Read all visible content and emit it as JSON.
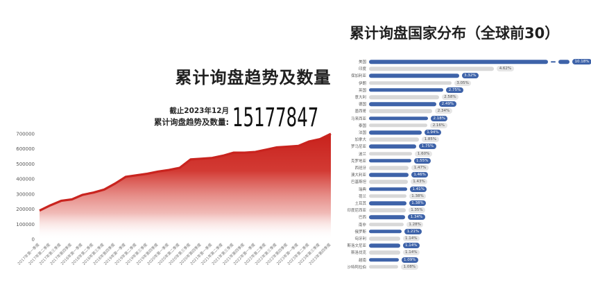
{
  "page": {
    "background": "#ffffff"
  },
  "left_panel": {
    "title": "累计询盘趋势及数量",
    "asof": "截止2023年12月",
    "total_label": "累计询盘趋势及数量:",
    "total_value": "15177847"
  },
  "right_panel": {
    "title": "累计询盘国家分布（全球前30）"
  },
  "colors": {
    "area_gradient_top": "#c8211c",
    "area_line": "#c9241f",
    "bar_blue": "#3e63a9",
    "bar_gray": "#d8d8d8",
    "pill_blue_bg": "#3e63a9",
    "pill_blue_text": "#ffffff",
    "pill_gray_bg": "#e6e6e6",
    "pill_gray_text": "#555555",
    "axis_text": "#555555",
    "x_tick_text": "#7a7a7a"
  },
  "chart_data": [
    {
      "type": "area",
      "title": "累计询盘趋势及数量",
      "xlabel": "",
      "ylabel": "",
      "ylim": [
        0,
        700000
      ],
      "yticks": [
        0,
        100000,
        200000,
        300000,
        400000,
        500000,
        600000,
        700000
      ],
      "grid": false,
      "legend": false,
      "x": [
        "2017年第一季度",
        "2017年第二季度",
        "2017年第三季度",
        "2017年第四季度",
        "2018年第一季度",
        "2018年第二季度",
        "2018年第三季度",
        "2018年第四季度",
        "2019年第一季度",
        "2019年第二季度",
        "2019年第三季度",
        "2019年第四季度",
        "2020年第一季度",
        "2020年第二季度",
        "2020年第三季度",
        "2020年第四季度",
        "2021年第一季度",
        "2021年第二季度",
        "2021年第三季度",
        "2021年第四季度",
        "2022年第一季度",
        "2022年第二季度",
        "2022年第三季度",
        "2022年第四季度",
        "2023年第一季度",
        "2023年第二季度",
        "2023年第三季度",
        "2023年第四季度"
      ],
      "values": [
        190000,
        225000,
        255000,
        265000,
        295000,
        310000,
        330000,
        370000,
        415000,
        425000,
        435000,
        450000,
        460000,
        475000,
        530000,
        535000,
        540000,
        555000,
        575000,
        575000,
        580000,
        595000,
        610000,
        615000,
        620000,
        650000,
        665000,
        700000
      ]
    },
    {
      "type": "bar",
      "orientation": "horizontal",
      "title": "累计询盘国家分布（全球前30）",
      "legend": false,
      "grid": false,
      "bar_style": "alternating blue/gray capsules with value pills",
      "first_bar_truncated": true,
      "categories": [
        "美国",
        "印度",
        "保加利亚",
        "伊朗",
        "英国",
        "意大利",
        "德国",
        "墨西哥",
        "马来西亚",
        "泰国",
        "法国",
        "加拿大",
        "罗马尼亚",
        "波兰",
        "克罗地亚",
        "西班牙",
        "澳大利亚",
        "巴基斯坦",
        "瑞典",
        "荷兰",
        "土耳其",
        "印度尼西亚",
        "巴西",
        "南非",
        "俄罗斯",
        "匈牙利",
        "斯洛文尼亚",
        "斯洛伐克",
        "越南",
        "沙特阿拉伯"
      ],
      "values": [
        10.18,
        4.62,
        3.32,
        3.05,
        2.75,
        2.58,
        2.49,
        2.34,
        2.18,
        2.16,
        1.94,
        1.85,
        1.75,
        1.6,
        1.55,
        1.47,
        1.46,
        1.43,
        1.41,
        1.38,
        1.38,
        1.35,
        1.34,
        1.28,
        1.21,
        1.14,
        1.14,
        1.14,
        1.09,
        1.08
      ],
      "labels": [
        "10.18%",
        "4.62%",
        "3.32%",
        "3.05%",
        "2.75%",
        "2.58%",
        "2.49%",
        "2.34%",
        "2.18%",
        "2.16%",
        "1.94%",
        "1.85%",
        "1.75%",
        "1.60%",
        "1.55%",
        "1.47%",
        "1.46%",
        "1.43%",
        "1.41%",
        "1.38%",
        "1.38%",
        "1.35%",
        "1.34%",
        "1.28%",
        "1.21%",
        "1.14%",
        "1.14%",
        "1.14%",
        "1.09%",
        "1.08%"
      ]
    }
  ]
}
